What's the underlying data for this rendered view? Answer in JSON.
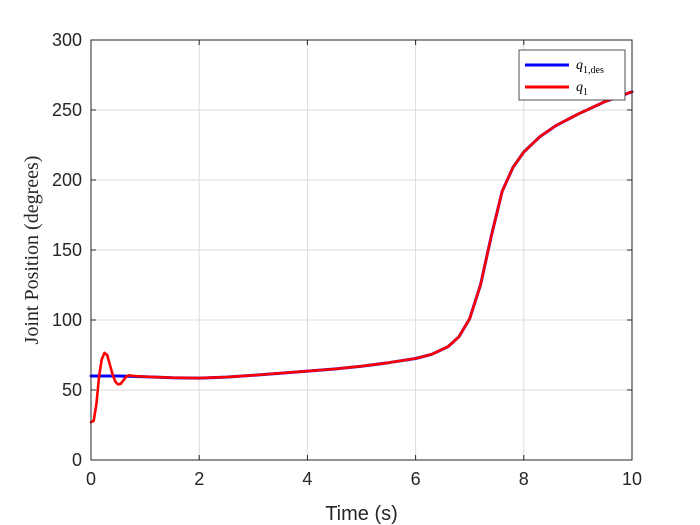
{
  "chart_data": {
    "type": "line",
    "title": "",
    "xlabel": "Time (s)",
    "ylabel": "Joint Position (degrees)",
    "xlim": [
      0,
      10
    ],
    "ylim": [
      0,
      300
    ],
    "xticks": [
      0,
      2,
      4,
      6,
      8,
      10
    ],
    "yticks": [
      0,
      50,
      100,
      150,
      200,
      250,
      300
    ],
    "grid": true,
    "legend_position": "top-right",
    "series": [
      {
        "name": "q_{1,des}",
        "label_main": "q",
        "label_sub": "1,des",
        "color": "#0000ff",
        "x": [
          0,
          0.1,
          0.3,
          0.5,
          0.7,
          1.0,
          1.5,
          2.0,
          2.5,
          3.0,
          3.5,
          4.0,
          4.5,
          5.0,
          5.5,
          6.0,
          6.3,
          6.6,
          6.8,
          7.0,
          7.2,
          7.4,
          7.6,
          7.8,
          8.0,
          8.3,
          8.6,
          9.0,
          9.5,
          10.0
        ],
        "y": [
          60,
          60,
          60,
          60,
          59.8,
          59.5,
          58.8,
          58.5,
          59.2,
          60.5,
          62,
          63.5,
          65,
          67,
          69.5,
          72.5,
          75.5,
          81,
          88,
          101,
          125,
          160,
          192,
          209,
          220,
          231,
          239,
          247,
          256,
          263
        ]
      },
      {
        "name": "q_1",
        "label_main": "q",
        "label_sub": "1",
        "color": "#ff0000",
        "x": [
          0,
          0.05,
          0.1,
          0.15,
          0.2,
          0.25,
          0.3,
          0.35,
          0.4,
          0.45,
          0.5,
          0.55,
          0.6,
          0.65,
          0.7,
          0.8,
          1.0,
          1.5,
          2.0,
          2.5,
          3.0,
          3.5,
          4.0,
          4.5,
          5.0,
          5.5,
          6.0,
          6.3,
          6.6,
          6.8,
          7.0,
          7.2,
          7.4,
          7.6,
          7.8,
          8.0,
          8.3,
          8.6,
          9.0,
          9.5,
          10.0
        ],
        "y": [
          27,
          28,
          40,
          60,
          72,
          76.5,
          75,
          68,
          61,
          56,
          54,
          54.5,
          57,
          59.5,
          60.5,
          60,
          59.5,
          58.8,
          58.5,
          59.2,
          60.5,
          62,
          63.5,
          65,
          67,
          69.5,
          72.5,
          75.5,
          81,
          88,
          101,
          125,
          160,
          192,
          209,
          220,
          231,
          239,
          247,
          256,
          263
        ]
      }
    ]
  }
}
